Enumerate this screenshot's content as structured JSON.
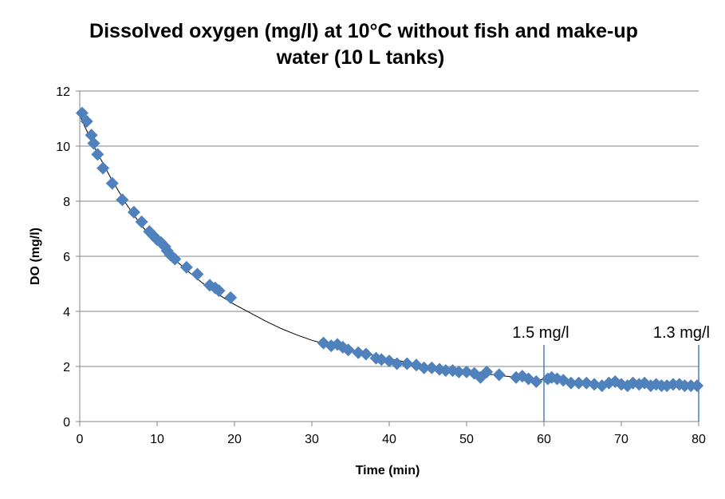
{
  "chart_data": {
    "type": "scatter",
    "title_lines": [
      "Dissolved oxygen (mg/l) at 10°C without fish and make-up",
      "water  (10 L tanks)"
    ],
    "xlabel": "Time (min)",
    "ylabel": "DO (mg/l)",
    "xlim": [
      0,
      80
    ],
    "ylim": [
      0,
      12
    ],
    "xticks": [
      0,
      10,
      20,
      30,
      40,
      50,
      60,
      70,
      80
    ],
    "yticks": [
      0,
      2,
      4,
      6,
      8,
      10,
      12
    ],
    "grid": "horizontal",
    "legend": "none",
    "marker_color": "#4f81bd",
    "trend_color": "#000000",
    "trendline": {
      "x": [
        0,
        2,
        4,
        6,
        8,
        10,
        12,
        14,
        16,
        18,
        20,
        22,
        24,
        26,
        28,
        30,
        32,
        34,
        36,
        38,
        40,
        42,
        44,
        46,
        48,
        50,
        52,
        54,
        56,
        58,
        60,
        62,
        64,
        66,
        68,
        70,
        72,
        74,
        76,
        78,
        80
      ],
      "y": [
        11.1,
        9.9,
        8.85,
        7.9,
        7.1,
        6.5,
        5.95,
        5.45,
        5.0,
        4.6,
        4.25,
        3.95,
        3.65,
        3.38,
        3.15,
        2.95,
        2.8,
        2.65,
        2.52,
        2.4,
        2.28,
        2.17,
        2.07,
        1.98,
        1.9,
        1.82,
        1.75,
        1.68,
        1.62,
        1.56,
        1.51,
        1.47,
        1.43,
        1.4,
        1.37,
        1.35,
        1.34,
        1.33,
        1.33,
        1.33,
        1.34
      ]
    },
    "points": [
      {
        "x": 0.3,
        "y": 11.2
      },
      {
        "x": 0.9,
        "y": 10.9
      },
      {
        "x": 1.5,
        "y": 10.4
      },
      {
        "x": 1.8,
        "y": 10.1
      },
      {
        "x": 2.3,
        "y": 9.7
      },
      {
        "x": 3.0,
        "y": 9.2
      },
      {
        "x": 4.2,
        "y": 8.65
      },
      {
        "x": 5.5,
        "y": 8.05
      },
      {
        "x": 7.0,
        "y": 7.6
      },
      {
        "x": 8.0,
        "y": 7.25
      },
      {
        "x": 9.0,
        "y": 6.9
      },
      {
        "x": 9.5,
        "y": 6.75
      },
      {
        "x": 10.0,
        "y": 6.6
      },
      {
        "x": 10.5,
        "y": 6.5
      },
      {
        "x": 11.0,
        "y": 6.35
      },
      {
        "x": 11.3,
        "y": 6.2
      },
      {
        "x": 11.7,
        "y": 6.05
      },
      {
        "x": 12.3,
        "y": 5.9
      },
      {
        "x": 13.8,
        "y": 5.6
      },
      {
        "x": 15.2,
        "y": 5.35
      },
      {
        "x": 16.8,
        "y": 4.95
      },
      {
        "x": 17.5,
        "y": 4.85
      },
      {
        "x": 18.0,
        "y": 4.75
      },
      {
        "x": 19.5,
        "y": 4.5
      },
      {
        "x": 31.5,
        "y": 2.85
      },
      {
        "x": 32.5,
        "y": 2.75
      },
      {
        "x": 33.3,
        "y": 2.8
      },
      {
        "x": 34.0,
        "y": 2.7
      },
      {
        "x": 34.7,
        "y": 2.6
      },
      {
        "x": 36.0,
        "y": 2.5
      },
      {
        "x": 37.0,
        "y": 2.45
      },
      {
        "x": 38.3,
        "y": 2.3
      },
      {
        "x": 39.0,
        "y": 2.25
      },
      {
        "x": 40.0,
        "y": 2.2
      },
      {
        "x": 41.0,
        "y": 2.1
      },
      {
        "x": 42.3,
        "y": 2.1
      },
      {
        "x": 43.5,
        "y": 2.05
      },
      {
        "x": 44.5,
        "y": 1.95
      },
      {
        "x": 45.5,
        "y": 1.95
      },
      {
        "x": 46.5,
        "y": 1.9
      },
      {
        "x": 47.3,
        "y": 1.85
      },
      {
        "x": 48.2,
        "y": 1.85
      },
      {
        "x": 49.0,
        "y": 1.8
      },
      {
        "x": 50.0,
        "y": 1.8
      },
      {
        "x": 51.0,
        "y": 1.75
      },
      {
        "x": 51.8,
        "y": 1.6
      },
      {
        "x": 52.6,
        "y": 1.8
      },
      {
        "x": 54.2,
        "y": 1.7
      },
      {
        "x": 56.4,
        "y": 1.6
      },
      {
        "x": 57.2,
        "y": 1.65
      },
      {
        "x": 58.0,
        "y": 1.55
      },
      {
        "x": 59.0,
        "y": 1.45
      },
      {
        "x": 60.5,
        "y": 1.55
      },
      {
        "x": 61.0,
        "y": 1.6
      },
      {
        "x": 61.7,
        "y": 1.55
      },
      {
        "x": 62.5,
        "y": 1.5
      },
      {
        "x": 63.5,
        "y": 1.4
      },
      {
        "x": 64.5,
        "y": 1.4
      },
      {
        "x": 65.5,
        "y": 1.4
      },
      {
        "x": 66.5,
        "y": 1.35
      },
      {
        "x": 67.5,
        "y": 1.3
      },
      {
        "x": 68.4,
        "y": 1.4
      },
      {
        "x": 69.2,
        "y": 1.45
      },
      {
        "x": 70.0,
        "y": 1.35
      },
      {
        "x": 70.8,
        "y": 1.3
      },
      {
        "x": 71.5,
        "y": 1.4
      },
      {
        "x": 72.3,
        "y": 1.35
      },
      {
        "x": 73.0,
        "y": 1.4
      },
      {
        "x": 73.8,
        "y": 1.3
      },
      {
        "x": 74.5,
        "y": 1.35
      },
      {
        "x": 75.2,
        "y": 1.3
      },
      {
        "x": 75.9,
        "y": 1.3
      },
      {
        "x": 76.7,
        "y": 1.35
      },
      {
        "x": 77.5,
        "y": 1.35
      },
      {
        "x": 78.2,
        "y": 1.3
      },
      {
        "x": 79.0,
        "y": 1.3
      },
      {
        "x": 79.8,
        "y": 1.3
      }
    ],
    "markers": [
      {
        "x": 60,
        "label": "1.5 mg/l"
      },
      {
        "x": 80,
        "label": "1.3 mg/l"
      }
    ]
  }
}
